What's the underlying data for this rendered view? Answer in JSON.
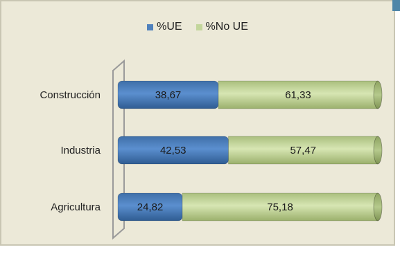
{
  "chart_data": {
    "type": "bar",
    "orientation": "horizontal",
    "stacked": true,
    "percent_stacked": true,
    "style": "3d-cylinder",
    "categories": [
      "Construcción",
      "Industria",
      "Agricultura"
    ],
    "series": [
      {
        "name": "%UE",
        "values": [
          38.67,
          42.53,
          24.82
        ],
        "labels": [
          "38,67",
          "42,53",
          "24,82"
        ],
        "color": "#4f81bd"
      },
      {
        "name": "%No UE",
        "values": [
          61.33,
          57.47,
          75.18
        ],
        "labels": [
          "61,33",
          "57,47",
          "75,18"
        ],
        "color": "#c3d69b"
      }
    ],
    "xlim": [
      0,
      100
    ],
    "grid": false,
    "legend_position": "top"
  },
  "colors": {
    "background": "#ece9d8",
    "frame_border": "#c9c6b3",
    "accent": "#4f86a8",
    "wall_line": "#9a9a9a"
  }
}
